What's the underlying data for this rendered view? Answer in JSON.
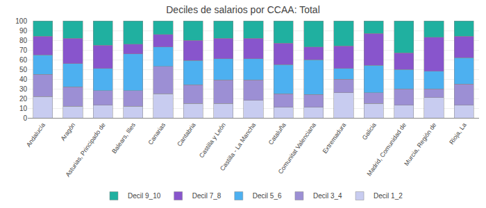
{
  "chart_data": {
    "type": "bar",
    "title": "Deciles de salarios por CCAA: Total",
    "categories": [
      "Andalucía",
      "Aragón",
      "Asturias, Principado de",
      "Balears, Illes",
      "Canarias",
      "Cantabria",
      "Castilla y León",
      "Castilla - La Mancha",
      "Cataluña",
      "Comunitat Valenciana",
      "Extremadura",
      "Galicia",
      "Madrid, Comunidad de",
      "Murcia, Región de",
      "Rioja, La"
    ],
    "series": [
      {
        "name": "Decil 1_2",
        "color": "#c8ccf0",
        "values": [
          22,
          12,
          13,
          12,
          25,
          15,
          15,
          18,
          11,
          11,
          26,
          15,
          13,
          21,
          13
        ]
      },
      {
        "name": "Decil 3_4",
        "color": "#9c8fd4",
        "values": [
          23,
          20,
          15,
          16,
          28,
          19,
          24,
          21,
          14,
          13,
          14,
          11,
          17,
          9,
          22
        ]
      },
      {
        "name": "Decil 5_6",
        "color": "#4db0f0",
        "values": [
          20,
          24,
          23,
          38,
          20,
          25,
          22,
          22,
          30,
          36,
          11,
          28,
          20,
          18,
          27
        ]
      },
      {
        "name": "Decil 7_8",
        "color": "#8855cc",
        "values": [
          19,
          26,
          24,
          10,
          13,
          21,
          21,
          21,
          22,
          13,
          23,
          33,
          17,
          35,
          22
        ]
      },
      {
        "name": "Decil 9_10",
        "color": "#20b0a0",
        "values": [
          16,
          18,
          25,
          24,
          14,
          20,
          18,
          18,
          23,
          27,
          26,
          13,
          33,
          17,
          16
        ]
      }
    ],
    "ylim": [
      0,
      100
    ],
    "yticks": [
      0,
      10,
      20,
      30,
      40,
      50,
      60,
      70,
      80,
      90,
      100
    ],
    "grid": true,
    "stacked": true,
    "legend": "bottom"
  }
}
